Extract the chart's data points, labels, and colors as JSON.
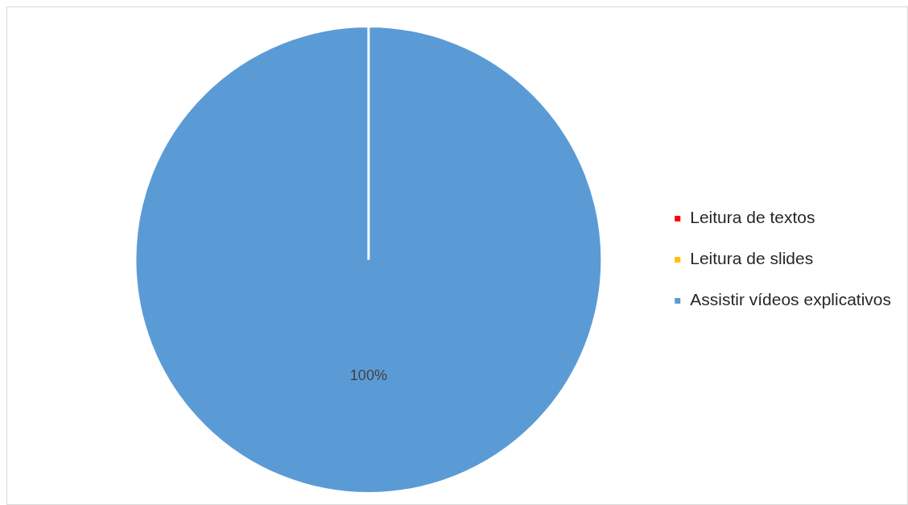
{
  "chart_data": {
    "type": "pie",
    "categories": [
      "Leitura de textos",
      "Leitura de slides",
      "Assistir vídeos explicativos"
    ],
    "values": [
      0,
      0,
      100
    ],
    "colors": [
      "#ff0000",
      "#ffc000",
      "#5b9bd5"
    ],
    "value_labels": [
      null,
      null,
      "100%"
    ],
    "legend": "right"
  }
}
